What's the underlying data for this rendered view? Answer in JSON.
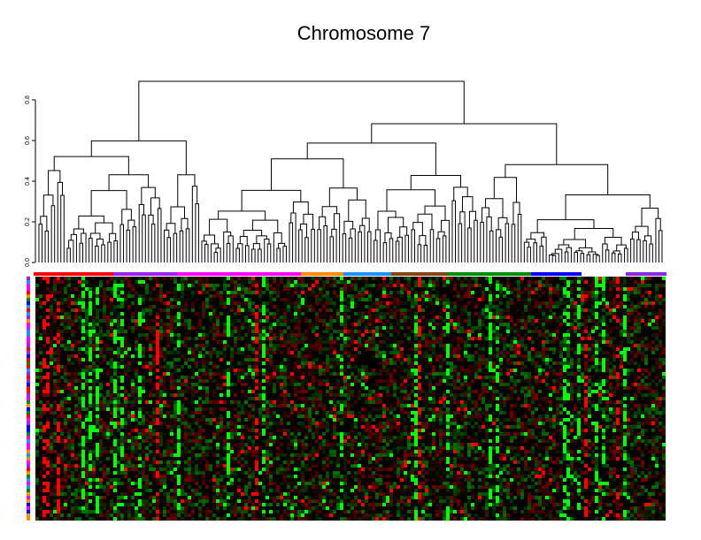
{
  "chart_data": {
    "type": "heatmap",
    "title": "Chromosome 7",
    "ylim": [
      0,
      0.8
    ],
    "yticks": [
      {
        "value": 0,
        "label": "0.0"
      },
      {
        "value": 0.2,
        "label": "0.2"
      },
      {
        "value": 0.4,
        "label": "0.4"
      },
      {
        "value": 0.6,
        "label": "0.6"
      },
      {
        "value": 0.8,
        "label": "0.8"
      }
    ],
    "column_group_colors": [
      "#ff0000",
      "#a020f0",
      "#ff00ff",
      "#ff8c00",
      "#1e90ff",
      "#8b4513",
      "#008b00",
      "#0000ff",
      "#ffffff",
      "#8a2be2"
    ],
    "row_group_colors": [
      "#ff8c00",
      "#1e90ff",
      "#ff00ff",
      "#008b00",
      "#ff0000",
      "#0000ff",
      "#a020f0"
    ]
  }
}
